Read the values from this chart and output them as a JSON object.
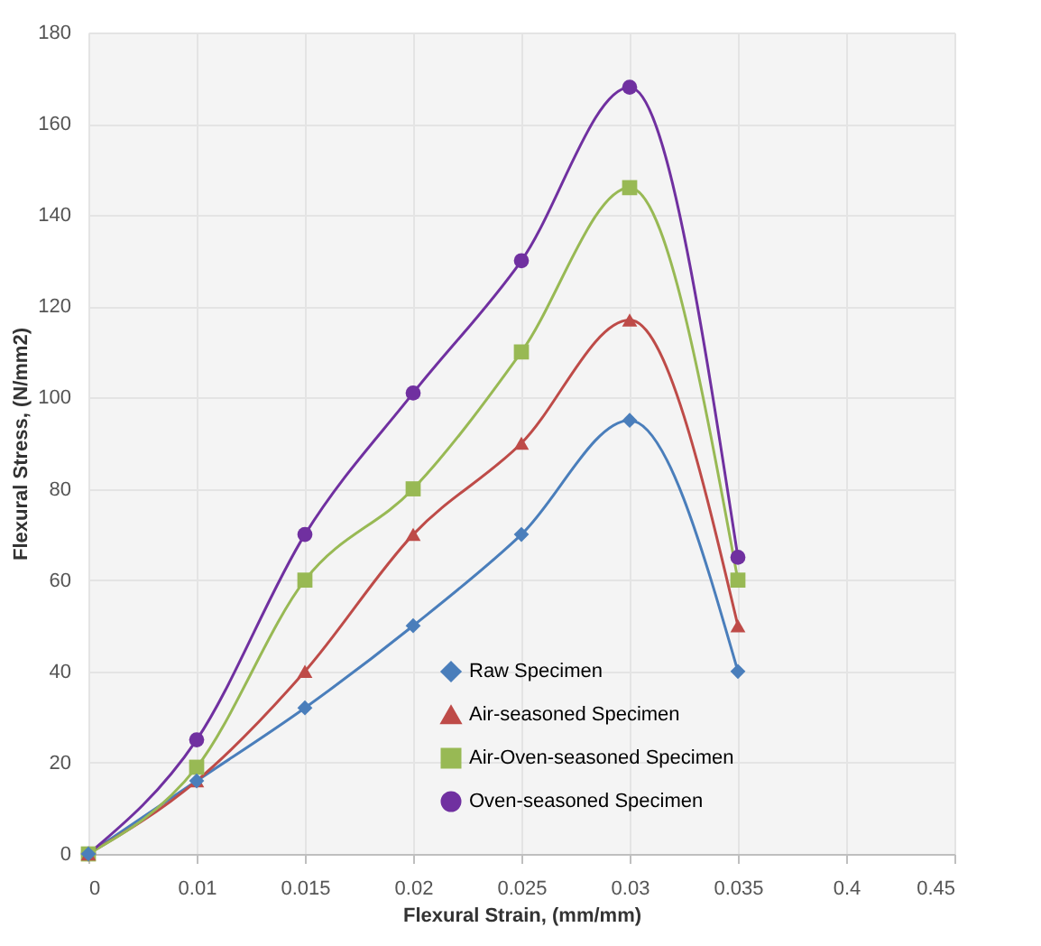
{
  "chart_data": {
    "type": "line",
    "xlabel": "Flexural Strain, (mm/mm)",
    "ylabel": "Flexural Stress, (N/mm2)",
    "categories": [
      "0",
      "0.01",
      "0.015",
      "0.02",
      "0.025",
      "0.03",
      "0.035",
      "0.4",
      "0.45"
    ],
    "ylim": [
      0,
      180
    ],
    "yticks": [
      0,
      20,
      40,
      60,
      80,
      100,
      120,
      140,
      160,
      180
    ],
    "grid": true,
    "legend": "bottom",
    "series": [
      {
        "name": "Raw Specimen",
        "color": "#4a7ebb",
        "marker": "diamond",
        "values": [
          0,
          16,
          32,
          50,
          70,
          95,
          40,
          null,
          null
        ]
      },
      {
        "name": "Air-seasoned Specimen",
        "color": "#be4b48",
        "marker": "triangle",
        "values": [
          0,
          16,
          40,
          70,
          90,
          117,
          50,
          null,
          null
        ]
      },
      {
        "name": "Air-Oven-seasoned Specimen",
        "color": "#98b954",
        "marker": "square",
        "values": [
          0,
          19,
          60,
          80,
          110,
          146,
          60,
          null,
          null
        ]
      },
      {
        "name": "Oven-seasoned Specimen",
        "color": "#7030a0",
        "marker": "circle",
        "values": [
          0,
          25,
          70,
          101,
          130,
          168,
          65,
          null,
          null
        ]
      }
    ]
  }
}
